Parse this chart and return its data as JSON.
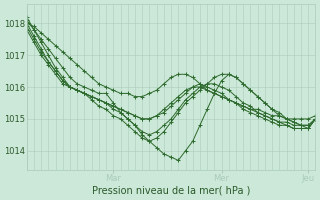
{
  "bg_color": "#cce8d8",
  "grid_color": "#aaccbb",
  "line_color": "#2d6a2d",
  "marker_color": "#2d6a2d",
  "ylabel_ticks": [
    1014,
    1015,
    1016,
    1017,
    1018
  ],
  "xlabel": "Pression niveau de la mer( hPa )",
  "day_labels": [
    "Mar",
    "Mer",
    "Jeu"
  ],
  "ylim": [
    1013.4,
    1018.6
  ],
  "series": [
    {
      "x": [
        0,
        1,
        2,
        3,
        4,
        5,
        6,
        7,
        8,
        9,
        10,
        11,
        12,
        13,
        14,
        15,
        16,
        17,
        18,
        19,
        20,
        21,
        22,
        23,
        24,
        25,
        26,
        27,
        28,
        29,
        30,
        31,
        32,
        33,
        34,
        35,
        36,
        37,
        38,
        39,
        40
      ],
      "y": [
        1018.0,
        1017.9,
        1017.7,
        1017.5,
        1017.3,
        1017.1,
        1016.9,
        1016.7,
        1016.5,
        1016.3,
        1016.1,
        1016.0,
        1015.9,
        1015.8,
        1015.8,
        1015.7,
        1015.7,
        1015.8,
        1015.9,
        1016.1,
        1016.3,
        1016.4,
        1016.4,
        1016.3,
        1016.1,
        1015.9,
        1015.8,
        1015.7,
        1015.6,
        1015.5,
        1015.4,
        1015.3,
        1015.3,
        1015.2,
        1015.1,
        1015.1,
        1015.0,
        1015.0,
        1015.0,
        1015.0,
        1015.1
      ]
    },
    {
      "x": [
        0,
        1,
        2,
        3,
        4,
        5,
        6,
        7,
        8,
        9,
        10,
        11,
        12,
        13,
        14,
        15,
        16,
        17,
        18,
        19,
        20,
        21,
        22,
        23,
        24,
        25,
        26,
        27,
        28,
        29,
        30,
        31,
        32,
        33,
        34,
        35,
        36,
        37,
        38,
        39,
        40
      ],
      "y": [
        1018.1,
        1017.8,
        1017.5,
        1017.2,
        1016.9,
        1016.6,
        1016.3,
        1016.1,
        1016.0,
        1015.9,
        1015.8,
        1015.8,
        1015.5,
        1015.2,
        1015.0,
        1014.8,
        1014.5,
        1014.3,
        1014.1,
        1013.9,
        1013.8,
        1013.7,
        1014.0,
        1014.3,
        1014.8,
        1015.3,
        1015.8,
        1016.2,
        1016.4,
        1016.3,
        1016.1,
        1015.9,
        1015.7,
        1015.5,
        1015.3,
        1015.2,
        1015.0,
        1014.9,
        1014.8,
        1014.8,
        1015.0
      ]
    },
    {
      "x": [
        0,
        1,
        2,
        3,
        4,
        5,
        6,
        7,
        8,
        9,
        10,
        11,
        12,
        13,
        14,
        15,
        16,
        17,
        18,
        19,
        20,
        21,
        22,
        23,
        24,
        25,
        26,
        27,
        28,
        29,
        30,
        31,
        32,
        33,
        34,
        35,
        36,
        37,
        38,
        39,
        40
      ],
      "y": [
        1018.2,
        1017.8,
        1017.4,
        1017.0,
        1016.6,
        1016.3,
        1016.0,
        1015.9,
        1015.8,
        1015.6,
        1015.4,
        1015.3,
        1015.1,
        1015.0,
        1014.8,
        1014.6,
        1014.4,
        1014.3,
        1014.4,
        1014.6,
        1014.9,
        1015.2,
        1015.5,
        1015.7,
        1015.9,
        1016.1,
        1016.3,
        1016.4,
        1016.4,
        1016.3,
        1016.1,
        1015.9,
        1015.7,
        1015.5,
        1015.3,
        1015.1,
        1015.0,
        1014.9,
        1014.8,
        1014.7,
        1015.0
      ]
    },
    {
      "x": [
        0,
        1,
        2,
        3,
        4,
        5,
        6,
        7,
        8,
        9,
        10,
        11,
        12,
        13,
        14,
        15,
        16,
        17,
        18,
        19,
        20,
        21,
        22,
        23,
        24,
        25,
        26,
        27,
        28,
        29,
        30,
        31,
        32,
        33,
        34,
        35,
        36,
        37,
        38,
        39,
        40
      ],
      "y": [
        1018.0,
        1017.6,
        1017.2,
        1016.8,
        1016.5,
        1016.2,
        1016.0,
        1015.9,
        1015.8,
        1015.7,
        1015.6,
        1015.5,
        1015.3,
        1015.2,
        1015.0,
        1014.8,
        1014.6,
        1014.5,
        1014.6,
        1014.8,
        1015.0,
        1015.3,
        1015.6,
        1015.8,
        1016.0,
        1016.1,
        1016.1,
        1016.0,
        1015.9,
        1015.7,
        1015.5,
        1015.4,
        1015.2,
        1015.1,
        1015.0,
        1014.9,
        1014.9,
        1014.8,
        1014.8,
        1014.8,
        1015.0
      ]
    },
    {
      "x": [
        0,
        1,
        2,
        3,
        4,
        5,
        6,
        7,
        8,
        9,
        10,
        11,
        12,
        13,
        14,
        15,
        16,
        17,
        18,
        19,
        20,
        21,
        22,
        23,
        24,
        25,
        26,
        27,
        28,
        29,
        30,
        31,
        32,
        33,
        34,
        35,
        36,
        37,
        38,
        39,
        40
      ],
      "y": [
        1017.9,
        1017.5,
        1017.1,
        1016.8,
        1016.5,
        1016.2,
        1016.0,
        1015.9,
        1015.8,
        1015.7,
        1015.6,
        1015.5,
        1015.4,
        1015.3,
        1015.2,
        1015.1,
        1015.0,
        1015.0,
        1015.1,
        1015.3,
        1015.5,
        1015.7,
        1015.9,
        1016.0,
        1016.0,
        1015.9,
        1015.8,
        1015.7,
        1015.6,
        1015.5,
        1015.4,
        1015.3,
        1015.2,
        1015.1,
        1015.0,
        1014.9,
        1014.8,
        1014.7,
        1014.7,
        1014.7,
        1015.0
      ]
    },
    {
      "x": [
        0,
        1,
        2,
        3,
        4,
        5,
        6,
        7,
        8,
        9,
        10,
        11,
        12,
        13,
        14,
        15,
        16,
        17,
        18,
        19,
        20,
        21,
        22,
        23,
        24,
        25,
        26,
        27,
        28,
        29,
        30,
        31,
        32,
        33,
        34,
        35,
        36,
        37,
        38,
        39,
        40
      ],
      "y": [
        1017.8,
        1017.4,
        1017.0,
        1016.7,
        1016.4,
        1016.1,
        1016.0,
        1015.9,
        1015.8,
        1015.7,
        1015.6,
        1015.5,
        1015.4,
        1015.3,
        1015.2,
        1015.1,
        1015.0,
        1015.0,
        1015.1,
        1015.2,
        1015.4,
        1015.6,
        1015.8,
        1016.0,
        1016.1,
        1016.0,
        1015.9,
        1015.8,
        1015.6,
        1015.5,
        1015.3,
        1015.2,
        1015.1,
        1015.0,
        1014.9,
        1014.8,
        1014.8,
        1014.7,
        1014.7,
        1014.7,
        1015.0
      ]
    }
  ],
  "n_total": 41,
  "mar_idx": 12,
  "mer_idx": 27,
  "jeu_idx": 39
}
